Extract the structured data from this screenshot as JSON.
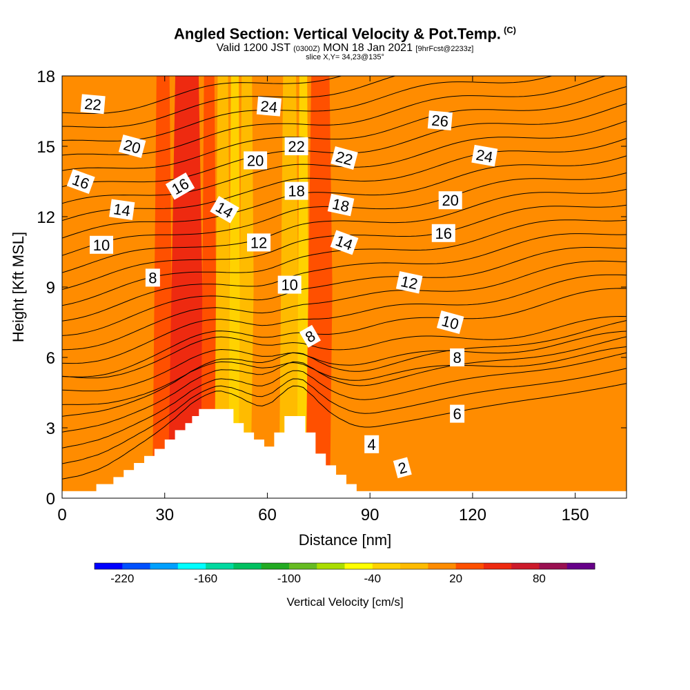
{
  "title": {
    "main": "Angled Section: Vertical Velocity & Pot.Temp.",
    "copyright": "(C)",
    "valid_prefix": "Valid 1200 JST",
    "valid_utc": "(0300Z)",
    "valid_date": "MON 18 Jan 2021",
    "forecast": "[9hrFcst@2233z]",
    "slice": "slice X,Y= 34,23@135°"
  },
  "chart_data": {
    "type": "heatmap",
    "title": "Angled Section: Vertical Velocity & Pot.Temp.",
    "xlabel": "Distance [nm]",
    "ylabel": "Height [Kft MSL]",
    "xlim": [
      0,
      165
    ],
    "ylim": [
      0,
      18
    ],
    "x_ticks": [
      0,
      30,
      60,
      90,
      120,
      150
    ],
    "y_ticks": [
      0,
      3,
      6,
      9,
      12,
      15,
      18
    ],
    "colorbar": {
      "label": "Vertical Velocity [cm/s]",
      "tick_values": [
        -220,
        -160,
        -100,
        -40,
        20,
        80
      ],
      "tick_labels": [
        "-220",
        "-160",
        "-100",
        "-40",
        "20",
        "80"
      ],
      "colors": [
        "#0000ff",
        "#0050ff",
        "#00a0ff",
        "#00ffff",
        "#00d9a0",
        "#00c060",
        "#22aa22",
        "#66bb22",
        "#aadd00",
        "#ffff00",
        "#ffd200",
        "#ffbb00",
        "#ff8c00",
        "#ff5000",
        "#ee2a10",
        "#cc1a2a",
        "#991050",
        "#660088"
      ]
    },
    "velocity_bands": [
      {
        "x": 0,
        "w": 4,
        "v": 10
      },
      {
        "x": 4,
        "w": 8,
        "v": 5
      },
      {
        "x": 12,
        "w": 6,
        "v": 10
      },
      {
        "x": 18,
        "w": 5,
        "v": 5
      },
      {
        "x": 23,
        "w": 4,
        "v": 15
      },
      {
        "x": 27,
        "w": 5,
        "v": 25
      },
      {
        "x": 32,
        "w": 9,
        "v": 45
      },
      {
        "x": 41,
        "w": 4,
        "v": 20
      },
      {
        "x": 45,
        "w": 4,
        "v": -15
      },
      {
        "x": 49,
        "w": 3,
        "v": -35
      },
      {
        "x": 52,
        "w": 4,
        "v": -15
      },
      {
        "x": 56,
        "w": 8,
        "v": 10
      },
      {
        "x": 64,
        "w": 5,
        "v": -5
      },
      {
        "x": 69,
        "w": 3,
        "v": -25
      },
      {
        "x": 72,
        "w": 7,
        "v": 30
      },
      {
        "x": 79,
        "w": 6,
        "v": 10
      },
      {
        "x": 85,
        "w": 10,
        "v": 0
      },
      {
        "x": 95,
        "w": 15,
        "v": 10
      },
      {
        "x": 110,
        "w": 22,
        "v": 15
      },
      {
        "x": 132,
        "w": 10,
        "v": 5
      },
      {
        "x": 142,
        "w": 8,
        "v": 10
      },
      {
        "x": 150,
        "w": 15,
        "v": 15
      }
    ],
    "terrain": [
      {
        "x0": 0,
        "x1": 10,
        "h": 0.3
      },
      {
        "x0": 10,
        "x1": 15,
        "h": 0.6
      },
      {
        "x0": 15,
        "x1": 18,
        "h": 0.9
      },
      {
        "x0": 18,
        "x1": 21,
        "h": 1.2
      },
      {
        "x0": 21,
        "x1": 24,
        "h": 1.5
      },
      {
        "x0": 24,
        "x1": 27,
        "h": 1.8
      },
      {
        "x0": 27,
        "x1": 30,
        "h": 2.1
      },
      {
        "x0": 30,
        "x1": 33,
        "h": 2.5
      },
      {
        "x0": 33,
        "x1": 36,
        "h": 2.9
      },
      {
        "x0": 36,
        "x1": 38,
        "h": 3.2
      },
      {
        "x0": 38,
        "x1": 40,
        "h": 3.5
      },
      {
        "x0": 40,
        "x1": 47,
        "h": 3.8
      },
      {
        "x0": 47,
        "x1": 50,
        "h": 3.8
      },
      {
        "x0": 50,
        "x1": 53,
        "h": 3.2
      },
      {
        "x0": 53,
        "x1": 56,
        "h": 2.8
      },
      {
        "x0": 56,
        "x1": 59,
        "h": 2.5
      },
      {
        "x0": 59,
        "x1": 62,
        "h": 2.2
      },
      {
        "x0": 62,
        "x1": 65,
        "h": 2.8
      },
      {
        "x0": 65,
        "x1": 71,
        "h": 3.5
      },
      {
        "x0": 71,
        "x1": 74,
        "h": 2.8
      },
      {
        "x0": 74,
        "x1": 77,
        "h": 1.9
      },
      {
        "x0": 77,
        "x1": 80,
        "h": 1.4
      },
      {
        "x0": 80,
        "x1": 83,
        "h": 1.0
      },
      {
        "x0": 83,
        "x1": 86,
        "h": 0.6
      },
      {
        "x0": 86,
        "x1": 165,
        "h": 0.3
      }
    ],
    "theta_contour_levels": [
      1,
      2,
      3,
      4,
      5,
      6,
      7,
      8,
      9,
      10,
      11,
      12,
      13,
      14,
      15,
      16,
      17,
      18,
      19,
      20,
      21,
      22,
      23,
      24,
      25,
      26
    ],
    "contour_labels": [
      {
        "text": "22",
        "x": 9,
        "y": 16.8,
        "angle": 5
      },
      {
        "text": "20",
        "x": 20.5,
        "y": 15.0,
        "angle": 15
      },
      {
        "text": "16",
        "x": 5.5,
        "y": 13.5,
        "angle": 20
      },
      {
        "text": "14",
        "x": 17.5,
        "y": 12.3,
        "angle": 8
      },
      {
        "text": "10",
        "x": 11.5,
        "y": 10.8,
        "angle": 0
      },
      {
        "text": "16",
        "x": 34.5,
        "y": 13.3,
        "angle": -30
      },
      {
        "text": "8",
        "x": 26.5,
        "y": 9.4,
        "angle": 0
      },
      {
        "text": "14",
        "x": 47.5,
        "y": 12.3,
        "angle": 30
      },
      {
        "text": "24",
        "x": 60.5,
        "y": 16.7,
        "angle": 5
      },
      {
        "text": "20",
        "x": 56.5,
        "y": 14.4,
        "angle": 0
      },
      {
        "text": "22",
        "x": 68.5,
        "y": 15.0,
        "angle": 0
      },
      {
        "text": "18",
        "x": 68.5,
        "y": 13.1,
        "angle": 0
      },
      {
        "text": "12",
        "x": 57.5,
        "y": 10.9,
        "angle": 0
      },
      {
        "text": "10",
        "x": 66.5,
        "y": 9.1,
        "angle": 0
      },
      {
        "text": "8",
        "x": 72.5,
        "y": 6.9,
        "angle": -30
      },
      {
        "text": "22",
        "x": 82.5,
        "y": 14.5,
        "angle": 15
      },
      {
        "text": "18",
        "x": 81.5,
        "y": 12.5,
        "angle": 12
      },
      {
        "text": "14",
        "x": 82.5,
        "y": 10.9,
        "angle": 20
      },
      {
        "text": "12",
        "x": 101.5,
        "y": 9.2,
        "angle": 12
      },
      {
        "text": "10",
        "x": 113.5,
        "y": 7.5,
        "angle": 15
      },
      {
        "text": "8",
        "x": 115.5,
        "y": 6.0,
        "angle": 0
      },
      {
        "text": "6",
        "x": 115.5,
        "y": 3.6,
        "angle": 0
      },
      {
        "text": "4",
        "x": 90.5,
        "y": 2.3,
        "angle": 0
      },
      {
        "text": "2",
        "x": 99.5,
        "y": 1.3,
        "angle": -15
      },
      {
        "text": "26",
        "x": 110.5,
        "y": 16.1,
        "angle": 5
      },
      {
        "text": "24",
        "x": 123.5,
        "y": 14.6,
        "angle": 10
      },
      {
        "text": "20",
        "x": 113.5,
        "y": 12.7,
        "angle": 0
      },
      {
        "text": "16",
        "x": 111.5,
        "y": 11.3,
        "angle": 0
      }
    ]
  }
}
